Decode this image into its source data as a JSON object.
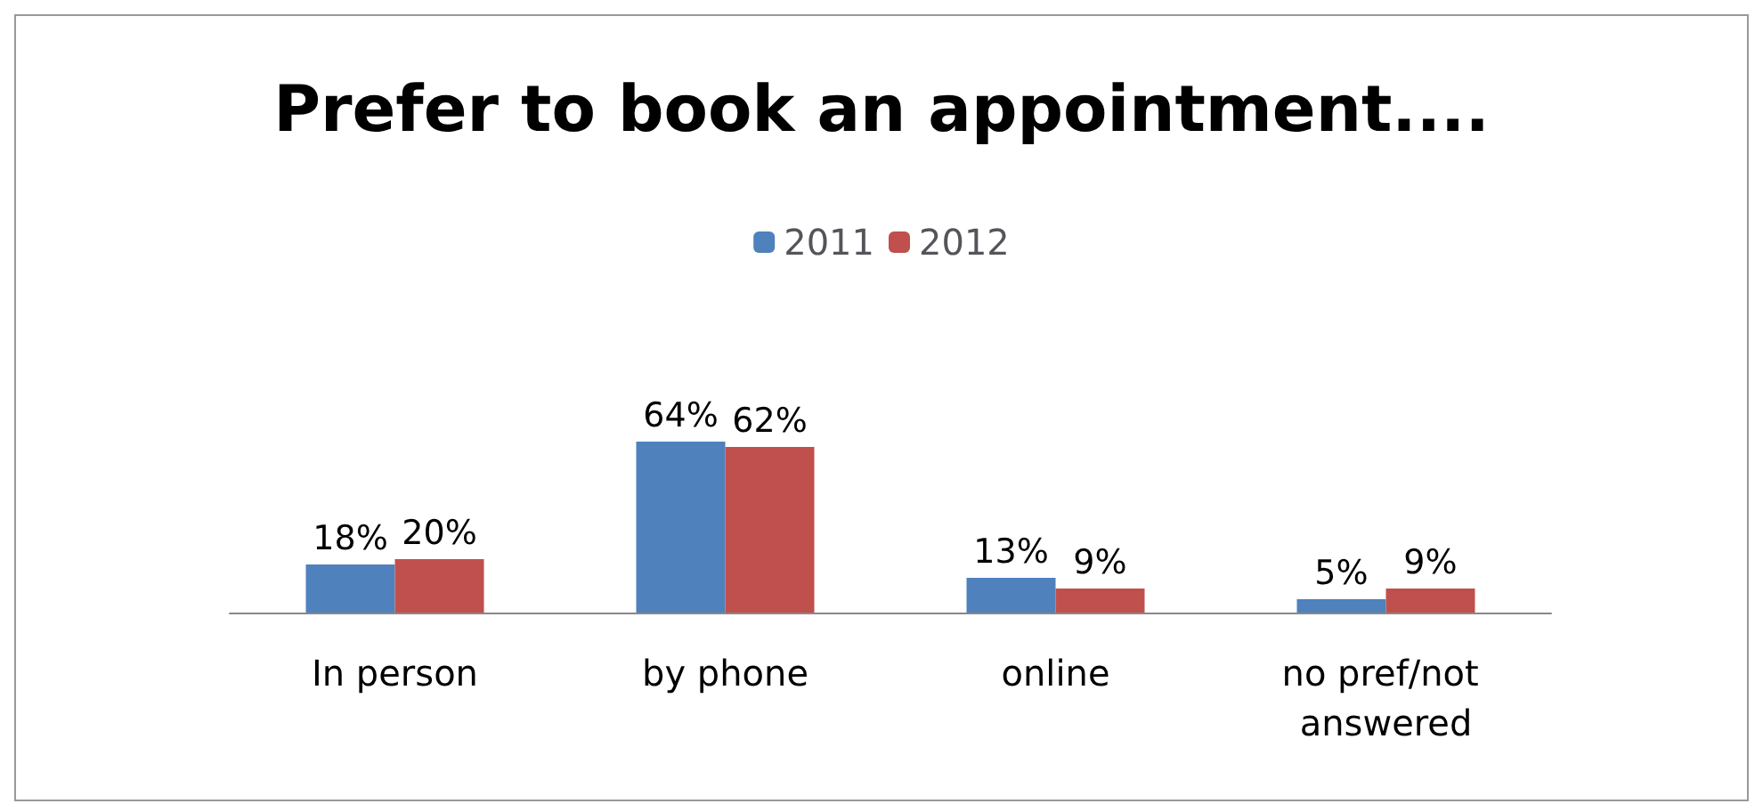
{
  "chart_data": {
    "type": "bar",
    "title": "Prefer to book an appointment....",
    "categories": [
      "In person",
      "by phone",
      "online",
      "no pref/not answered"
    ],
    "series": [
      {
        "name": "2011",
        "color": "#4f81bd",
        "values": [
          18,
          64,
          13,
          5
        ],
        "value_labels": [
          "18%",
          "64%",
          "13%",
          "5%"
        ]
      },
      {
        "name": "2012",
        "color": "#c0504d",
        "values": [
          20,
          62,
          9,
          9
        ],
        "value_labels": [
          "20%",
          "62%",
          "9%",
          "9%"
        ]
      }
    ],
    "legend": "top"
  }
}
